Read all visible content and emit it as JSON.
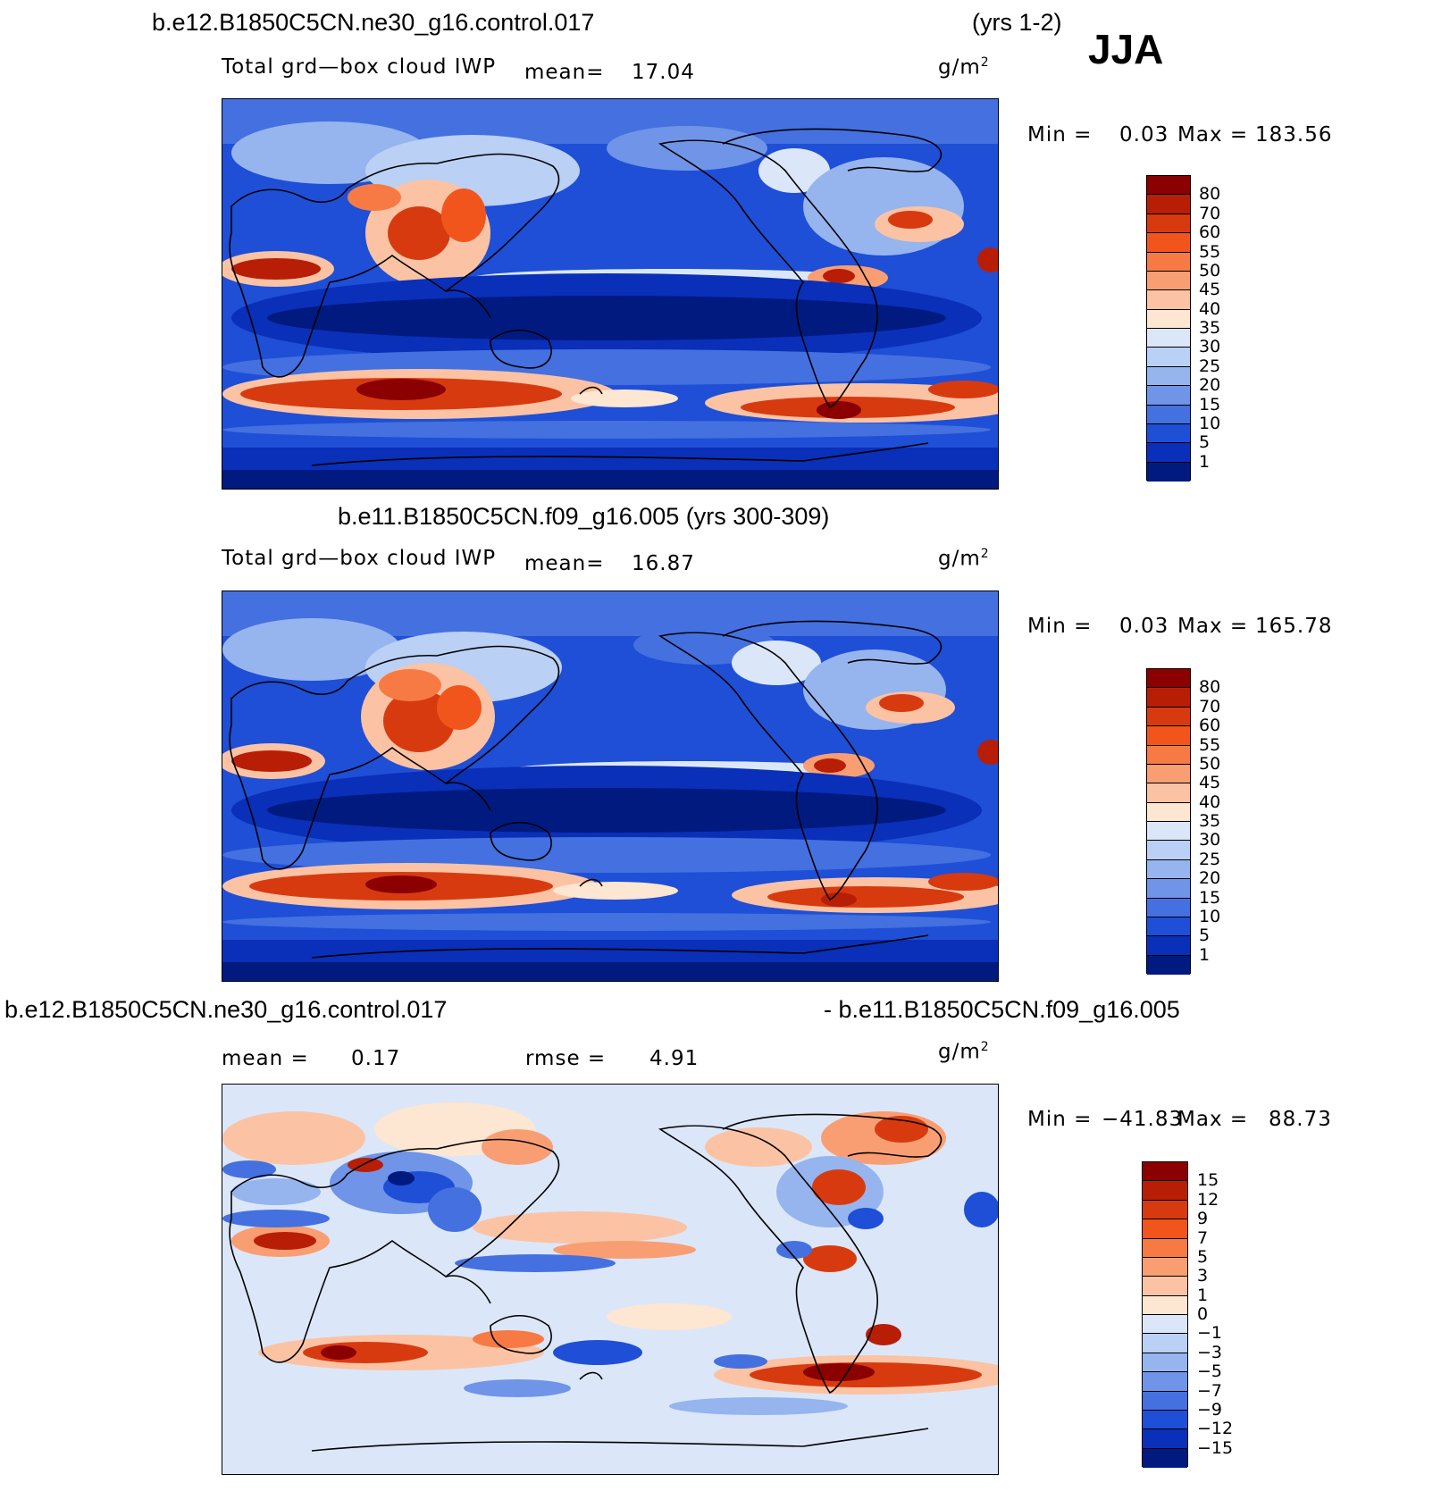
{
  "season": "JJA",
  "panel1": {
    "case": "b.e12.B1850C5CN.ne30_g16.control.017",
    "years": "(yrs 1-2)",
    "variable": "Total grd—box cloud IWP",
    "mean_label": "mean=",
    "mean_value": "17.04",
    "units_base": "g/m",
    "units_exp": "2",
    "min_label": "Min =",
    "min_value": "0.03",
    "max_label": "Max =",
    "max_value": "183.56"
  },
  "panel2": {
    "title": "b.e11.B1850C5CN.f09_g16.005 (yrs 300-309)",
    "variable": "Total grd—box cloud IWP",
    "mean_label": "mean=",
    "mean_value": "16.87",
    "units_base": "g/m",
    "units_exp": "2",
    "min_label": "Min =",
    "min_value": "0.03",
    "max_label": "Max =",
    "max_value": "165.78"
  },
  "panel3": {
    "title_left": "b.e12.B1850C5CN.ne30_g16.control.017",
    "title_right": "- b.e11.B1850C5CN.f09_g16.005",
    "mean_label": "mean =",
    "mean_value": "0.17",
    "rmse_label": "rmse =",
    "rmse_value": "4.91",
    "units_base": "g/m",
    "units_exp": "2",
    "min_label": "Min =",
    "min_value": "−41.83",
    "max_label": "Max =",
    "max_value": "88.73"
  },
  "colorbar_abs": {
    "labels": [
      "80",
      "70",
      "60",
      "55",
      "50",
      "45",
      "40",
      "35",
      "30",
      "25",
      "20",
      "15",
      "10",
      "5",
      "1"
    ],
    "colors": [
      "#8b0000",
      "#b81e05",
      "#d83a10",
      "#f2551c",
      "#f77a45",
      "#f99e73",
      "#fbc3a4",
      "#fde6d2",
      "#dbe7f9",
      "#bad0f4",
      "#96b4ee",
      "#6f94e8",
      "#4470e0",
      "#1e4fd6",
      "#0a2fb8",
      "#001a80"
    ]
  },
  "colorbar_diff": {
    "labels": [
      "15",
      "12",
      "9",
      "7",
      "5",
      "3",
      "1",
      "0",
      "−1",
      "−3",
      "−5",
      "−7",
      "−9",
      "−12",
      "−15"
    ],
    "colors": [
      "#8b0000",
      "#b81e05",
      "#d83a10",
      "#f2551c",
      "#f77a45",
      "#f99e73",
      "#fbc3a4",
      "#fde6d2",
      "#dbe7f9",
      "#bad0f4",
      "#96b4ee",
      "#6f94e8",
      "#4470e0",
      "#1e4fd6",
      "#0a2fb8",
      "#001a80"
    ]
  }
}
